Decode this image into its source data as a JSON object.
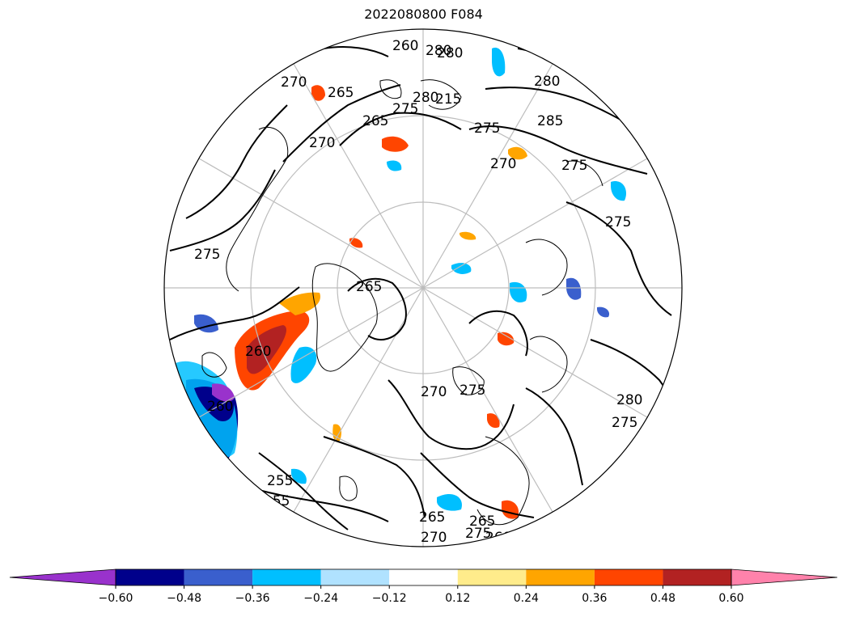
{
  "title": "2022080800 F084",
  "colorbar": {
    "levels": [
      "−0.60",
      "−0.48",
      "−0.36",
      "−0.24",
      "−0.12",
      "0.12",
      "0.24",
      "0.36",
      "0.48",
      "0.60"
    ],
    "colors": [
      "#9932cc",
      "#00008b",
      "#3a5fcd",
      "#00bfff",
      "#b0e2ff",
      "#ffffff",
      "#ffec8b",
      "#ffa500",
      "#ff4500",
      "#b22222",
      "#ff82ab"
    ]
  },
  "contour_labels": [
    {
      "text": "255"
    },
    {
      "text": "260"
    },
    {
      "text": "260"
    },
    {
      "text": "270"
    },
    {
      "text": "265"
    },
    {
      "text": "270"
    },
    {
      "text": "265"
    },
    {
      "text": "275"
    },
    {
      "text": "280"
    },
    {
      "text": "280"
    },
    {
      "text": "215"
    },
    {
      "text": "275"
    },
    {
      "text": "270"
    },
    {
      "text": "285"
    },
    {
      "text": "275"
    },
    {
      "text": "280"
    },
    {
      "text": "275"
    },
    {
      "text": "275"
    },
    {
      "text": "280"
    },
    {
      "text": "275"
    },
    {
      "text": "270"
    },
    {
      "text": "275"
    },
    {
      "text": "265"
    },
    {
      "text": "260"
    },
    {
      "text": "255"
    },
    {
      "text": "265"
    },
    {
      "text": "265"
    },
    {
      "text": "275"
    },
    {
      "text": "260"
    },
    {
      "text": "270"
    },
    {
      "text": "280"
    }
  ]
}
